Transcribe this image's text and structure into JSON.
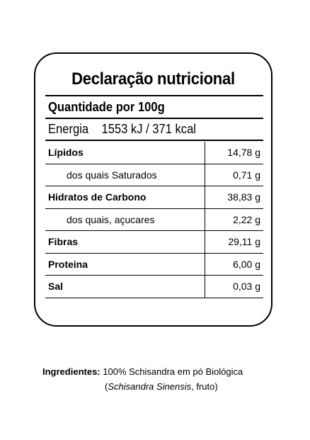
{
  "label": {
    "title": "Declaração nutricional",
    "quantity": "Quantidade por 100g",
    "energy_label": "Energia",
    "energy_value": "1553 kJ / 371 kcal",
    "rows": [
      {
        "name": "Lípidos",
        "amount": "14,78 g"
      },
      {
        "name": "dos quais Saturados",
        "amount": "0,71 g"
      },
      {
        "name": "Hidratos de Carbono",
        "amount": "38,83 g"
      },
      {
        "name": "dos quais, açucares",
        "amount": "2,22 g"
      },
      {
        "name": "Fibras",
        "amount": "29,11 g"
      },
      {
        "name": "Proteina",
        "amount": "6,00 g"
      },
      {
        "name": "Sal",
        "amount": "0,03 g"
      }
    ]
  },
  "ingredients": {
    "label": "Ingredientes:",
    "text": "100% Schisandra em pó Biológica",
    "latin_name": "Schisandra Sinensis",
    "latin_suffix": ", fruto)",
    "open_paren": "("
  }
}
